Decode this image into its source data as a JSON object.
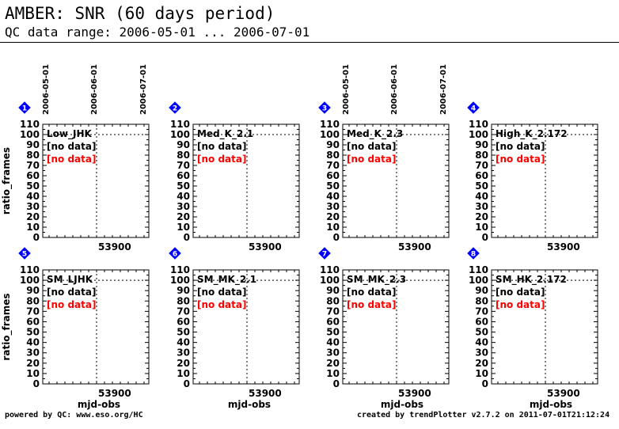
{
  "page": {
    "title": "AMBER: SNR (60 days period)",
    "subtitle": "QC data range: 2006-05-01 ... 2006-07-01",
    "footer_left": "powered by QC: www.eso.org/HC",
    "footer_right": "created by trendPlotter v2.7.2 on 2011-07-01T21:12:24"
  },
  "chart_data": {
    "type": "scatter",
    "ylabel": "ratio_frames",
    "xlabel": "mjd-obs",
    "ylim": [
      0,
      110
    ],
    "yticks": [
      0,
      10,
      20,
      30,
      40,
      50,
      60,
      70,
      80,
      90,
      100,
      110
    ],
    "xticks": [
      "53900"
    ],
    "date_ticks": [
      "2006-05-01",
      "2006-06-01",
      "2006-07-01"
    ],
    "reference_line_y": 100,
    "grid": false,
    "no_data_label": "[no data]",
    "no_data_color": "#ff0000",
    "marker_color": "#0000ff",
    "panels": [
      {
        "id": "1",
        "label": "Low_JHK",
        "points": []
      },
      {
        "id": "2",
        "label": "Med_K_2.1",
        "points": []
      },
      {
        "id": "3",
        "label": "Med_K_2.3",
        "points": []
      },
      {
        "id": "4",
        "label": "High_K_2.172",
        "points": []
      },
      {
        "id": "5",
        "label": "SM_LJHK",
        "points": []
      },
      {
        "id": "6",
        "label": "SM_MK_2.1",
        "points": []
      },
      {
        "id": "7",
        "label": "SM_MK_2.3",
        "points": []
      },
      {
        "id": "8",
        "label": "SM_HK_2.172",
        "points": []
      }
    ]
  }
}
